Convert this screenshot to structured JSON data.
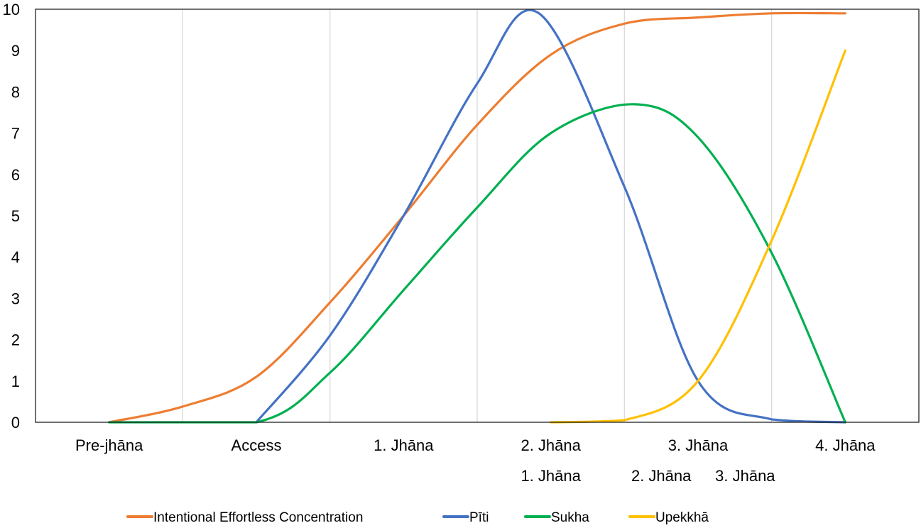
{
  "chart_data": {
    "type": "line",
    "title": "",
    "xlabel": "",
    "ylabel": "",
    "ylim": [
      0,
      10
    ],
    "yticks": [
      0,
      1,
      2,
      3,
      4,
      5,
      6,
      7,
      8,
      9,
      10
    ],
    "grid": "vertical",
    "categories": [
      "Pre-jhāna",
      "Access",
      "1. Jhāna",
      "2. Jhāna",
      "3. Jhāna",
      "4. Jhāna"
    ],
    "secondary_labels": [
      {
        "text": "1. Jhāna",
        "at": 3.0,
        "row": 2
      },
      {
        "text": "2. Jhāna",
        "at": 3.75,
        "row": 2
      },
      {
        "text": "3. Jhāna",
        "at": 4.32,
        "row": 2
      }
    ],
    "legend_position": "bottom",
    "series": [
      {
        "name": "Intentional Effortless Concentration",
        "color": "#ED7D31",
        "x": [
          0,
          0.5,
          1,
          1.5,
          2,
          2.5,
          3,
          3.5,
          4,
          4.5,
          5
        ],
        "y": [
          0,
          0.38,
          1.1,
          2.9,
          5.0,
          7.2,
          8.9,
          9.65,
          9.8,
          9.9,
          9.9
        ]
      },
      {
        "name": "Pīti",
        "color": "#4472C4",
        "x": [
          1,
          1.5,
          2,
          2.5,
          2.92,
          3.5,
          4,
          4.5,
          5
        ],
        "y": [
          0,
          2.1,
          5.0,
          8.2,
          9.9,
          5.7,
          1.0,
          0.07,
          0
        ]
      },
      {
        "name": "Sukha",
        "color": "#00B050",
        "x": [
          0,
          1,
          1.5,
          2,
          2.5,
          3,
          3.57,
          4,
          4.5,
          5
        ],
        "y": [
          0,
          0,
          1.2,
          3.2,
          5.2,
          7.0,
          7.7,
          6.9,
          4.1,
          0
        ]
      },
      {
        "name": "Upekkhā",
        "color": "#FFC000",
        "x": [
          3,
          3.5,
          4,
          4.5,
          5
        ],
        "y": [
          0,
          0.05,
          1.0,
          4.4,
          9.0
        ]
      }
    ]
  }
}
